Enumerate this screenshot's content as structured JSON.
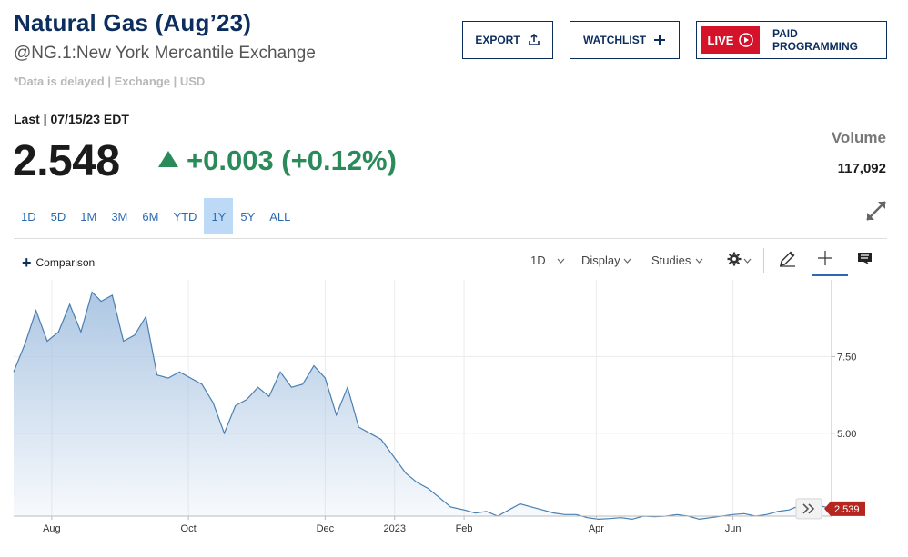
{
  "header": {
    "title": "Natural Gas (Aug’23)",
    "subtitle": "@NG.1:New York Mercantile Exchange",
    "delay_note": "*Data is delayed | Exchange | USD"
  },
  "buttons": {
    "export_label": "EXPORT",
    "watchlist_label": "WATCHLIST",
    "live_label": "LIVE",
    "paid_label": "PAID PROGRAMMING"
  },
  "quote": {
    "last_label": "Last | 07/15/23 EDT",
    "price": "2.548",
    "change": "+0.003 (+0.12%)",
    "change_color": "#2a8a5a",
    "volume_label": "Volume",
    "volume_value": "117,092"
  },
  "ranges": [
    "1D",
    "5D",
    "1M",
    "3M",
    "6M",
    "YTD",
    "1Y",
    "5Y",
    "ALL"
  ],
  "active_range": "1Y",
  "toolbar": {
    "comparison_label": "Comparison",
    "interval_label": "1D",
    "display_label": "Display",
    "studies_label": "Studies"
  },
  "chart_data": {
    "type": "area",
    "title": "",
    "xlabel": "",
    "ylabel": "",
    "x_ticks": [
      "Aug",
      "Oct",
      "Dec",
      "2023",
      "Feb",
      "Apr",
      "Jun"
    ],
    "y_ticks": [
      "7.50",
      "5.00"
    ],
    "y_tick_values": [
      7.5,
      5.0
    ],
    "ylim": [
      2.3,
      10.0
    ],
    "xlim": [
      "2022-07-15",
      "2023-07-15"
    ],
    "current_value": "2.539",
    "grid": true,
    "line_color": "#4a7fb0",
    "fill_color": "#a9c4e2",
    "series": [
      {
        "x": [
          "2022-07-15",
          "2022-07-20",
          "2022-07-25",
          "2022-07-30",
          "2022-08-04",
          "2022-08-09",
          "2022-08-14",
          "2022-08-19",
          "2022-08-23",
          "2022-08-28",
          "2022-09-02",
          "2022-09-07",
          "2022-09-12",
          "2022-09-17",
          "2022-09-22",
          "2022-09-27",
          "2022-10-02",
          "2022-10-07",
          "2022-10-12",
          "2022-10-17",
          "2022-10-22",
          "2022-10-27",
          "2022-11-01",
          "2022-11-06",
          "2022-11-11",
          "2022-11-16",
          "2022-11-21",
          "2022-11-26",
          "2022-12-01",
          "2022-12-06",
          "2022-12-11",
          "2022-12-16",
          "2022-12-21",
          "2022-12-26",
          "2023-01-01",
          "2023-01-06",
          "2023-01-11",
          "2023-01-16",
          "2023-01-21",
          "2023-01-26",
          "2023-02-01",
          "2023-02-06",
          "2023-02-11",
          "2023-02-16",
          "2023-02-21",
          "2023-02-26",
          "2023-03-03",
          "2023-03-08",
          "2023-03-13",
          "2023-03-18",
          "2023-03-23",
          "2023-03-28",
          "2023-04-02",
          "2023-04-07",
          "2023-04-12",
          "2023-04-17",
          "2023-04-22",
          "2023-04-27",
          "2023-05-02",
          "2023-05-07",
          "2023-05-12",
          "2023-05-17",
          "2023-05-22",
          "2023-05-27",
          "2023-06-01",
          "2023-06-06",
          "2023-06-11",
          "2023-06-16",
          "2023-06-21",
          "2023-06-26",
          "2023-07-01",
          "2023-07-06",
          "2023-07-15"
        ],
        "y": [
          7.0,
          7.9,
          9.0,
          8.0,
          8.3,
          9.2,
          8.3,
          9.6,
          9.3,
          9.5,
          8.0,
          8.2,
          8.8,
          6.9,
          6.8,
          7.0,
          6.8,
          6.6,
          6.0,
          5.0,
          5.9,
          6.1,
          6.5,
          6.2,
          7.0,
          6.5,
          6.6,
          7.2,
          6.8,
          5.6,
          6.5,
          5.2,
          5.0,
          4.8,
          4.2,
          3.7,
          3.4,
          3.2,
          2.9,
          2.6,
          2.5,
          2.4,
          2.45,
          2.3,
          2.5,
          2.7,
          2.6,
          2.5,
          2.4,
          2.35,
          2.35,
          2.25,
          2.2,
          2.22,
          2.25,
          2.2,
          2.3,
          2.28,
          2.3,
          2.35,
          2.3,
          2.2,
          2.25,
          2.3,
          2.35,
          2.38,
          2.3,
          2.35,
          2.45,
          2.5,
          2.65,
          2.7,
          2.55
        ]
      }
    ]
  }
}
